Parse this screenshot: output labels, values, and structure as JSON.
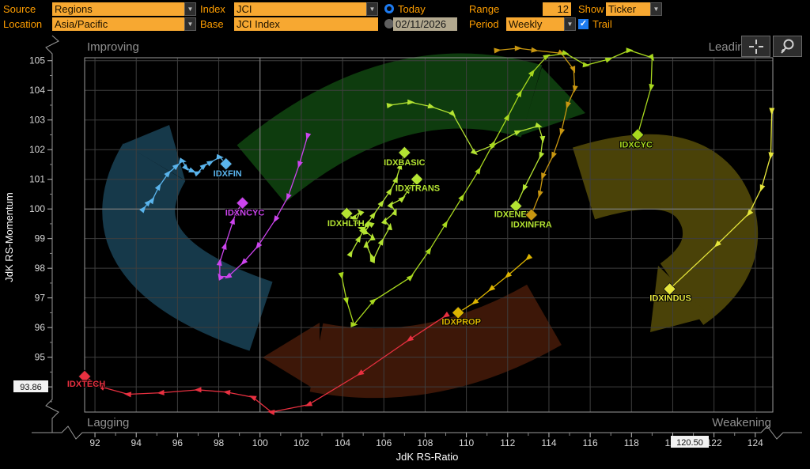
{
  "toolbar": {
    "source_label": "Source",
    "source_value": "Regions",
    "index_label": "Index",
    "index_value": "JCI",
    "today_label": "Today",
    "range_label": "Range",
    "range_value": "12",
    "show_label": "Show",
    "show_value": "Ticker",
    "location_label": "Location",
    "location_value": "Asia/Pacific",
    "base_label": "Base",
    "base_value": "JCI Index",
    "date_value": "02/11/2026",
    "period_label": "Period",
    "period_value": "Weekly",
    "trail_label": "Trail"
  },
  "chart_data": {
    "type": "scatter",
    "xlabel": "JdK RS-Ratio",
    "ylabel": "JdK RS-Momentum",
    "xlim": [
      91.5,
      124.85
    ],
    "ylim": [
      93.15,
      105.1
    ],
    "x_ticks": [
      92,
      94,
      96,
      98,
      100,
      102,
      104,
      106,
      108,
      110,
      112,
      114,
      116,
      118,
      120,
      122,
      124
    ],
    "y_ticks": [
      94,
      95,
      96,
      97,
      98,
      99,
      100,
      101,
      102,
      103,
      104,
      105
    ],
    "center_x": 100,
    "center_y": 100,
    "quadrants": {
      "top_left": "Improving",
      "top_right": "Leading",
      "bottom_left": "Lagging",
      "bottom_right": "Weakening"
    },
    "crosshair": {
      "x_value": "120.50",
      "y_value": "93.86"
    },
    "rotation_arrows": [
      {
        "quadrant": "improving",
        "color": "#16394a"
      },
      {
        "quadrant": "leading",
        "color": "#0e3c0e"
      },
      {
        "quadrant": "weakening",
        "color": "#4a4208"
      },
      {
        "quadrant": "lagging",
        "color": "#3d1708"
      }
    ],
    "series": [
      {
        "name": "IDXFIN",
        "color": "#5ab4ec",
        "points": [
          [
            94.35,
            100.0
          ],
          [
            94.6,
            100.22
          ],
          [
            94.78,
            100.3
          ],
          [
            95.1,
            100.75
          ],
          [
            95.55,
            101.2
          ],
          [
            95.95,
            101.45
          ],
          [
            96.25,
            101.62
          ],
          [
            96.42,
            101.38
          ],
          [
            96.72,
            101.28
          ],
          [
            96.98,
            101.22
          ],
          [
            97.28,
            101.45
          ],
          [
            97.6,
            101.57
          ],
          [
            98.05,
            101.75
          ],
          [
            98.35,
            101.52
          ]
        ],
        "label_dx": 2,
        "label_dy": 16
      },
      {
        "name": "IDXNCYC",
        "color": "#cc44ee",
        "points": [
          [
            102.3,
            102.45
          ],
          [
            101.9,
            101.5
          ],
          [
            101.35,
            100.4
          ],
          [
            100.75,
            99.65
          ],
          [
            99.9,
            98.75
          ],
          [
            99.2,
            98.2
          ],
          [
            98.45,
            97.72
          ],
          [
            98.05,
            97.72
          ],
          [
            98.05,
            98.2
          ],
          [
            98.3,
            98.75
          ],
          [
            98.7,
            99.6
          ],
          [
            98.85,
            99.9
          ],
          [
            99.15,
            100.2
          ]
        ],
        "label_dx": 3,
        "label_dy": 16
      },
      {
        "name": "IDXBASIC",
        "color": "#b4e432",
        "points": [
          [
            104.4,
            98.5
          ],
          [
            104.8,
            99.0
          ],
          [
            105.2,
            99.5
          ],
          [
            105.0,
            99.3
          ],
          [
            105.5,
            99.8
          ],
          [
            105.9,
            100.2
          ],
          [
            106.3,
            100.6
          ],
          [
            106.6,
            101.0
          ],
          [
            106.8,
            101.45
          ],
          [
            107.0,
            101.9
          ]
        ],
        "label_dx": 0,
        "label_dy": 16
      },
      {
        "name": "IDXTRANS",
        "color": "#b4e432",
        "points": [
          [
            105.5,
            98.3
          ],
          [
            105.9,
            98.9
          ],
          [
            106.3,
            99.4
          ],
          [
            106.05,
            99.6
          ],
          [
            106.55,
            99.9
          ],
          [
            106.35,
            100.15
          ],
          [
            106.9,
            100.35
          ],
          [
            107.2,
            100.65
          ],
          [
            107.6,
            101.0
          ]
        ],
        "label_dx": 1,
        "label_dy": 15
      },
      {
        "name": "IDXHLTH",
        "color": "#b4e432",
        "points": [
          [
            105.4,
            98.4
          ],
          [
            105.15,
            98.8
          ],
          [
            105.45,
            99.05
          ],
          [
            105.1,
            99.25
          ],
          [
            105.35,
            99.5
          ],
          [
            104.9,
            99.35
          ],
          [
            104.65,
            99.6
          ],
          [
            104.85,
            99.9
          ],
          [
            104.5,
            99.7
          ],
          [
            104.2,
            99.85
          ]
        ],
        "label_dx": -1,
        "label_dy": 16
      },
      {
        "name": "IDXENER",
        "color": "#b4e432",
        "points": [
          [
            106.3,
            103.5
          ],
          [
            107.3,
            103.6
          ],
          [
            108.3,
            103.45
          ],
          [
            109.35,
            103.2
          ],
          [
            110.4,
            101.9
          ],
          [
            111.3,
            102.15
          ],
          [
            112.5,
            102.6
          ],
          [
            113.5,
            102.8
          ],
          [
            113.7,
            102.35
          ],
          [
            113.6,
            101.8
          ],
          [
            112.8,
            100.7
          ],
          [
            112.4,
            100.1
          ]
        ],
        "label_dx": -3,
        "label_dy": 14
      },
      {
        "name": "IDXINFRA",
        "color": "#c89610",
        "label_color": "#b4e432",
        "points": [
          [
            111.5,
            105.35
          ],
          [
            112.5,
            105.42
          ],
          [
            113.3,
            105.35
          ],
          [
            114.6,
            105.25
          ],
          [
            115.2,
            104.7
          ],
          [
            115.25,
            104.05
          ],
          [
            114.9,
            103.5
          ],
          [
            114.6,
            102.6
          ],
          [
            114.2,
            101.8
          ],
          [
            113.7,
            101.1
          ],
          [
            113.55,
            100.5
          ],
          [
            113.15,
            99.8
          ]
        ],
        "label_dx": 0,
        "label_dy": 16
      },
      {
        "name": "IDXCYC",
        "color": "#a8d81e",
        "points": [
          [
            103.95,
            97.75
          ],
          [
            104.2,
            96.9
          ],
          [
            104.55,
            96.1
          ],
          [
            105.5,
            96.9
          ],
          [
            107.3,
            97.7
          ],
          [
            108.2,
            98.6
          ],
          [
            109.0,
            99.5
          ],
          [
            109.8,
            100.4
          ],
          [
            110.6,
            101.3
          ],
          [
            111.3,
            102.2
          ],
          [
            112.0,
            103.1
          ],
          [
            112.6,
            103.9
          ],
          [
            113.2,
            104.6
          ],
          [
            113.9,
            105.15
          ],
          [
            114.8,
            105.25
          ],
          [
            115.8,
            104.85
          ],
          [
            116.9,
            105.05
          ],
          [
            117.9,
            105.35
          ],
          [
            119.0,
            105.1
          ],
          [
            118.95,
            104.1
          ],
          [
            118.3,
            102.5
          ]
        ],
        "label_dx": -2,
        "label_dy": 16
      },
      {
        "name": "IDXINDUS",
        "color": "#e6e63c",
        "points": [
          [
            124.8,
            103.3
          ],
          [
            124.75,
            101.8
          ],
          [
            124.3,
            100.7
          ],
          [
            123.7,
            99.85
          ],
          [
            122.15,
            98.8
          ],
          [
            119.85,
            97.3
          ]
        ],
        "label_dx": 1,
        "label_dy": 15
      },
      {
        "name": "IDXPROP",
        "color": "#dcb400",
        "points": [
          [
            113.0,
            98.35
          ],
          [
            112.0,
            97.75
          ],
          [
            111.2,
            97.3
          ],
          [
            110.4,
            96.85
          ],
          [
            109.6,
            96.5
          ]
        ],
        "label_dx": 4,
        "label_dy": 15
      },
      {
        "name": "IDXTECH",
        "color": "#e83040",
        "points": [
          [
            109.0,
            96.4
          ],
          [
            107.25,
            95.6
          ],
          [
            104.85,
            94.45
          ],
          [
            102.35,
            93.4
          ],
          [
            100.55,
            93.15
          ],
          [
            99.65,
            93.65
          ],
          [
            98.4,
            93.82
          ],
          [
            97.0,
            93.9
          ],
          [
            95.2,
            93.8
          ],
          [
            93.6,
            93.75
          ],
          [
            92.3,
            94.0
          ],
          [
            91.5,
            94.35
          ]
        ],
        "label_dx": 2,
        "label_dy": 13
      }
    ]
  }
}
